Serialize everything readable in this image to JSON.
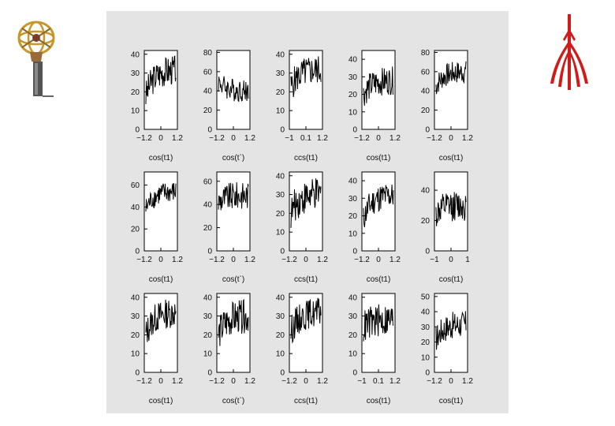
{
  "colors": {
    "panel_bg": "#e4e4e4",
    "frame_bg": "#ffffff",
    "line": "#000000",
    "logo_red": "#d11a1a",
    "logo_gold": "#c8962a"
  },
  "logos": {
    "left": "atlas-experiment-logo",
    "right": "red-emblem-logo"
  },
  "chart_data": [
    {
      "type": "line",
      "row": 0,
      "col": 0,
      "xlabel": "cos(t1)",
      "xticks": [
        "−1.2",
        "0",
        "1.2"
      ],
      "yticks": [
        "0",
        "10",
        "20",
        "30",
        "40"
      ],
      "ylim": [
        0,
        42
      ],
      "xlim": [
        -1.2,
        1.2
      ],
      "base": 18,
      "amp": 14,
      "noise": 8
    },
    {
      "type": "line",
      "row": 0,
      "col": 1,
      "xlabel": "cos(t`)",
      "xticks": [
        "−1.2",
        "0",
        "1.2"
      ],
      "yticks": [
        "0",
        "20",
        "40",
        "60",
        "80"
      ],
      "ylim": [
        0,
        82
      ],
      "xlim": [
        -1.2,
        1.2
      ],
      "base": 50,
      "amp": -10,
      "noise": 12
    },
    {
      "type": "line",
      "row": 0,
      "col": 2,
      "xlabel": "ccs(t1)",
      "xticks": [
        "−1",
        "0.1",
        "1.2"
      ],
      "yticks": [
        "0",
        "10",
        "20",
        "30",
        "40"
      ],
      "ylim": [
        0,
        42
      ],
      "xlim": [
        -1,
        1.2
      ],
      "base": 22,
      "amp": 10,
      "noise": 8
    },
    {
      "type": "line",
      "row": 0,
      "col": 3,
      "xlabel": "cos(t1)",
      "xticks": [
        "−1.2",
        "0",
        "1.2"
      ],
      "yticks": [
        "0",
        "10",
        "20",
        "30",
        "40"
      ],
      "ylim": [
        0,
        45
      ],
      "xlim": [
        -1.2,
        1.2
      ],
      "base": 20,
      "amp": 8,
      "noise": 8
    },
    {
      "type": "line",
      "row": 0,
      "col": 4,
      "xlabel": "cos(t1)",
      "xticks": [
        "−1.2",
        "0",
        "1.2"
      ],
      "yticks": [
        "0",
        "20",
        "40",
        "60",
        "80"
      ],
      "ylim": [
        0,
        82
      ],
      "xlim": [
        -1.2,
        1.2
      ],
      "base": 45,
      "amp": 15,
      "noise": 12
    },
    {
      "type": "line",
      "row": 1,
      "col": 0,
      "xlabel": "cos(t1)",
      "xticks": [
        "−1.2",
        "0",
        "1.2"
      ],
      "yticks": [
        "0",
        "20",
        "40",
        "60"
      ],
      "ylim": [
        0,
        72
      ],
      "xlim": [
        -1.2,
        1.2
      ],
      "base": 38,
      "amp": 16,
      "noise": 10
    },
    {
      "type": "line",
      "row": 1,
      "col": 1,
      "xlabel": "cos(t`)",
      "xticks": [
        "−1.2",
        "0",
        "1.2"
      ],
      "yticks": [
        "0",
        "20",
        "40",
        "60"
      ],
      "ylim": [
        0,
        68
      ],
      "xlim": [
        -1.2,
        1.2
      ],
      "base": 42,
      "amp": 6,
      "noise": 12
    },
    {
      "type": "line",
      "row": 1,
      "col": 2,
      "xlabel": "ccs(t1)",
      "xticks": [
        "−1.2",
        "0",
        "1.2"
      ],
      "yticks": [
        "0",
        "10",
        "20",
        "30",
        "40"
      ],
      "ylim": [
        0,
        42
      ],
      "xlim": [
        -1.2,
        1.2
      ],
      "base": 20,
      "amp": 10,
      "noise": 9
    },
    {
      "type": "line",
      "row": 1,
      "col": 3,
      "xlabel": "cos(t1)",
      "xticks": [
        "−1.2",
        "0",
        "1.2"
      ],
      "yticks": [
        "0",
        "10",
        "20",
        "30",
        "40"
      ],
      "ylim": [
        0,
        45
      ],
      "xlim": [
        -1.2,
        1.2
      ],
      "base": 18,
      "amp": 14,
      "noise": 8
    },
    {
      "type": "line",
      "row": 1,
      "col": 4,
      "xlabel": "cos(t1)",
      "xticks": [
        "−1",
        "0",
        "1"
      ],
      "yticks": [
        "0",
        "20",
        "40"
      ],
      "ylim": [
        0,
        52
      ],
      "xlim": [
        -1,
        1
      ],
      "base": 24,
      "amp": 6,
      "noise": 10
    },
    {
      "type": "line",
      "row": 2,
      "col": 0,
      "xlabel": "cos(t1)",
      "xticks": [
        "−1.2",
        "0",
        "1.2"
      ],
      "yticks": [
        "0",
        "10",
        "20",
        "30",
        "40"
      ],
      "ylim": [
        0,
        42
      ],
      "xlim": [
        -1.2,
        1.2
      ],
      "base": 20,
      "amp": 12,
      "noise": 8
    },
    {
      "type": "line",
      "row": 2,
      "col": 1,
      "xlabel": "cos(t`)",
      "xticks": [
        "−1.2",
        "0",
        "1.2"
      ],
      "yticks": [
        "0",
        "10",
        "20",
        "30",
        "40"
      ],
      "ylim": [
        0,
        42
      ],
      "xlim": [
        -1.2,
        1.2
      ],
      "base": 20,
      "amp": 10,
      "noise": 9
    },
    {
      "type": "line",
      "row": 2,
      "col": 2,
      "xlabel": "ccs(t1)",
      "xticks": [
        "−1.2",
        "0",
        "1.2"
      ],
      "yticks": [
        "0",
        "10",
        "20",
        "30",
        "40"
      ],
      "ylim": [
        0,
        42
      ],
      "xlim": [
        -1.2,
        1.2
      ],
      "base": 22,
      "amp": 10,
      "noise": 8
    },
    {
      "type": "line",
      "row": 2,
      "col": 3,
      "xlabel": "cos(t1)",
      "xticks": [
        "−1",
        "0.1",
        "1.2"
      ],
      "yticks": [
        "0",
        "10",
        "20",
        "30",
        "40"
      ],
      "ylim": [
        0,
        42
      ],
      "xlim": [
        -1,
        1.2
      ],
      "base": 24,
      "amp": 4,
      "noise": 9
    },
    {
      "type": "line",
      "row": 2,
      "col": 4,
      "xlabel": "cos(t1)",
      "xticks": [
        "−1.2",
        "0",
        "1.2"
      ],
      "yticks": [
        "0",
        "10",
        "20",
        "30",
        "40",
        "50"
      ],
      "ylim": [
        0,
        52
      ],
      "xlim": [
        -1.2,
        1.2
      ],
      "base": 22,
      "amp": 10,
      "noise": 9
    }
  ]
}
